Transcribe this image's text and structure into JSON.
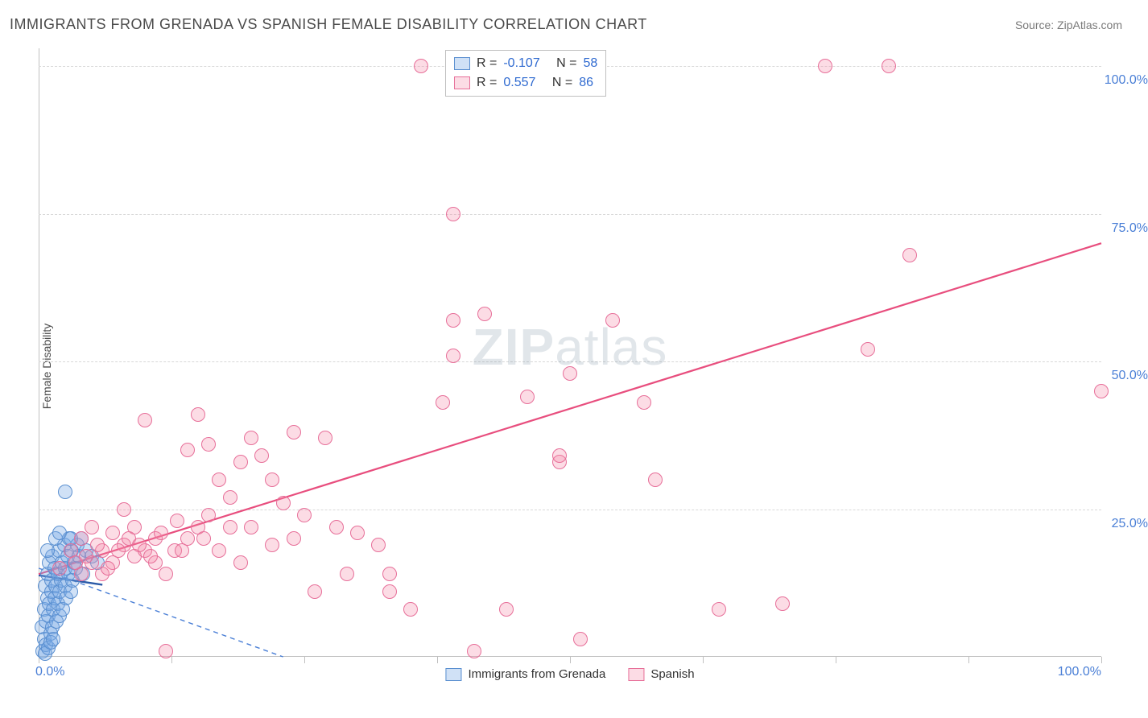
{
  "header": {
    "title": "IMMIGRANTS FROM GRENADA VS SPANISH FEMALE DISABILITY CORRELATION CHART",
    "source": "Source: ZipAtlas.com"
  },
  "watermark": {
    "zip": "ZIP",
    "atlas": "atlas"
  },
  "chart": {
    "type": "scatter",
    "ylabel": "Female Disability",
    "background_color": "#ffffff",
    "grid_color": "#d8d8d8",
    "axis_color": "#c0c0c0",
    "tick_label_color": "#4a7fd6",
    "tick_fontsize": 16,
    "label_fontsize": 14,
    "xlim": [
      0,
      100
    ],
    "ylim": [
      0,
      103
    ],
    "xticks": [
      0,
      12.5,
      25,
      37.5,
      50,
      62.5,
      75,
      87.5,
      100
    ],
    "xtick_labels": {
      "0": "0.0%",
      "100": "100.0%"
    },
    "yticks": [
      25,
      50,
      75,
      100
    ],
    "ytick_labels": {
      "25": "25.0%",
      "50": "50.0%",
      "75": "75.0%",
      "100": "100.0%"
    },
    "point_radius": 9,
    "point_stroke_width": 1.2,
    "series": [
      {
        "id": "grenada",
        "label": "Immigrants from Grenada",
        "fill": "rgba(120,170,230,0.35)",
        "stroke": "#5a8fd0",
        "r": -0.107,
        "n": 58,
        "regression": {
          "x1": 0,
          "y1": 15,
          "x2": 23,
          "y2": 0,
          "color": "#4a7fd6",
          "width": 1.4,
          "dash": "6,5"
        },
        "marker_line": {
          "x1": 0,
          "y1": 13.8,
          "x2": 6,
          "y2": 12.2,
          "color": "#2a5aa8",
          "width": 2.4
        },
        "points": [
          [
            0.3,
            5
          ],
          [
            0.4,
            1
          ],
          [
            0.5,
            3
          ],
          [
            0.5,
            8
          ],
          [
            0.6,
            12
          ],
          [
            0.7,
            6
          ],
          [
            0.7,
            2
          ],
          [
            0.8,
            10
          ],
          [
            0.8,
            14
          ],
          [
            0.9,
            7
          ],
          [
            1.0,
            16
          ],
          [
            1.0,
            9
          ],
          [
            1.1,
            4
          ],
          [
            1.2,
            11
          ],
          [
            1.2,
            13
          ],
          [
            1.3,
            5
          ],
          [
            1.3,
            17
          ],
          [
            1.4,
            8
          ],
          [
            1.5,
            15
          ],
          [
            1.5,
            10
          ],
          [
            1.6,
            12
          ],
          [
            1.7,
            6
          ],
          [
            1.8,
            14
          ],
          [
            1.8,
            9
          ],
          [
            1.9,
            18
          ],
          [
            2.0,
            7
          ],
          [
            2.0,
            11
          ],
          [
            2.1,
            13
          ],
          [
            2.2,
            16
          ],
          [
            2.3,
            8
          ],
          [
            2.4,
            19
          ],
          [
            2.5,
            12
          ],
          [
            2.5,
            15
          ],
          [
            2.6,
            10
          ],
          [
            2.7,
            17
          ],
          [
            2.8,
            14
          ],
          [
            2.9,
            20
          ],
          [
            3.0,
            11
          ],
          [
            3.1,
            18
          ],
          [
            3.2,
            13
          ],
          [
            3.3,
            16
          ],
          [
            3.5,
            15
          ],
          [
            3.6,
            19
          ],
          [
            3.8,
            17
          ],
          [
            4.0,
            20
          ],
          [
            4.2,
            14
          ],
          [
            0.6,
            0.5
          ],
          [
            0.9,
            1.5
          ],
          [
            1.1,
            2.5
          ],
          [
            1.4,
            3
          ],
          [
            2.5,
            28
          ],
          [
            0.8,
            18
          ],
          [
            1.6,
            20
          ],
          [
            2.0,
            21
          ],
          [
            3.0,
            20
          ],
          [
            4.5,
            18
          ],
          [
            5.0,
            17
          ],
          [
            5.5,
            16
          ]
        ]
      },
      {
        "id": "spanish",
        "label": "Spanish",
        "fill": "rgba(246,140,170,0.30)",
        "stroke": "#e76f99",
        "r": 0.557,
        "n": 86,
        "regression": {
          "x1": 0,
          "y1": 14,
          "x2": 100,
          "y2": 70,
          "color": "#e84e7e",
          "width": 2.2,
          "dash": ""
        },
        "points": [
          [
            2,
            15
          ],
          [
            3,
            18
          ],
          [
            4,
            14
          ],
          [
            4,
            20
          ],
          [
            5,
            16
          ],
          [
            5,
            22
          ],
          [
            6,
            18
          ],
          [
            6,
            14
          ],
          [
            7,
            21
          ],
          [
            7,
            16
          ],
          [
            8,
            19
          ],
          [
            8,
            25
          ],
          [
            9,
            17
          ],
          [
            9,
            22
          ],
          [
            10,
            40
          ],
          [
            10,
            18
          ],
          [
            11,
            20
          ],
          [
            11,
            16
          ],
          [
            12,
            14
          ],
          [
            12,
            1
          ],
          [
            12.8,
            18
          ],
          [
            13,
            23
          ],
          [
            14,
            20
          ],
          [
            14,
            35
          ],
          [
            15,
            22
          ],
          [
            15,
            41
          ],
          [
            16,
            24
          ],
          [
            16,
            36
          ],
          [
            17,
            18
          ],
          [
            17,
            30
          ],
          [
            18,
            22
          ],
          [
            18,
            27
          ],
          [
            19,
            33
          ],
          [
            19,
            16
          ],
          [
            20,
            37
          ],
          [
            20,
            22
          ],
          [
            21,
            34
          ],
          [
            22,
            30
          ],
          [
            22,
            19
          ],
          [
            23,
            26
          ],
          [
            24,
            20
          ],
          [
            24,
            38
          ],
          [
            25,
            24
          ],
          [
            26,
            11
          ],
          [
            27,
            37
          ],
          [
            28,
            22
          ],
          [
            29,
            14
          ],
          [
            30,
            21
          ],
          [
            32,
            19
          ],
          [
            33,
            14
          ],
          [
            33,
            11
          ],
          [
            35,
            8
          ],
          [
            36,
            100
          ],
          [
            38,
            43
          ],
          [
            39,
            57
          ],
          [
            39,
            51
          ],
          [
            39,
            75
          ],
          [
            41,
            1
          ],
          [
            42,
            58
          ],
          [
            44,
            8
          ],
          [
            46,
            44
          ],
          [
            49,
            33
          ],
          [
            49,
            34
          ],
          [
            50,
            48
          ],
          [
            51,
            3
          ],
          [
            54,
            57
          ],
          [
            57,
            43
          ],
          [
            58,
            30
          ],
          [
            64,
            8
          ],
          [
            70,
            9
          ],
          [
            74,
            100
          ],
          [
            78,
            52
          ],
          [
            80,
            100
          ],
          [
            82,
            68
          ],
          [
            100,
            45
          ],
          [
            3.5,
            16
          ],
          [
            4.5,
            17
          ],
          [
            5.5,
            19
          ],
          [
            6.5,
            15
          ],
          [
            7.5,
            18
          ],
          [
            8.5,
            20
          ],
          [
            9.5,
            19
          ],
          [
            10.5,
            17
          ],
          [
            11.5,
            21
          ],
          [
            13.5,
            18
          ],
          [
            15.5,
            20
          ]
        ]
      }
    ],
    "legend": {
      "border_color": "#bfbfbf",
      "bg_color": "#ffffff",
      "r_label": "R =",
      "n_label": "N ="
    }
  }
}
